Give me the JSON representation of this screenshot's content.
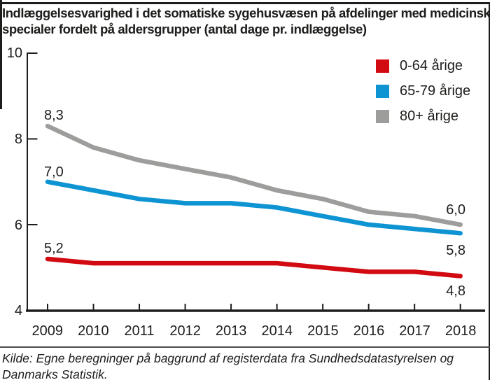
{
  "header": {
    "title_lines": [
      "Indlæggelsesvarighed i det somatiske sygehusvæsen på afdelinger med medicinske",
      "specialer fordelt på aldersgrupper (antal dage pr. indlæggelse)"
    ]
  },
  "chart_data": {
    "type": "line",
    "title": "Indlæggelsesvarighed i det somatiske sygehusvæsen på afdelinger med medicinske specialer fordelt på aldersgrupper (antal dage pr. indlæggelse)",
    "x": [
      "2009",
      "2010",
      "2011",
      "2012",
      "2013",
      "2014",
      "2015",
      "2016",
      "2017",
      "2018"
    ],
    "ylim": [
      4,
      10
    ],
    "yticks": [
      "10",
      "8",
      "6",
      "4"
    ],
    "grid": false,
    "legend_position": "top-right",
    "axis_color": "#1d1d1b",
    "series": [
      {
        "name": "0-64 årige",
        "color": "#d20a11",
        "values": [
          5.2,
          5.1,
          5.1,
          5.1,
          5.1,
          5.1,
          5.0,
          4.9,
          4.9,
          4.8
        ],
        "first_label": "5,2",
        "last_label": "4,8"
      },
      {
        "name": "65-79 årige",
        "color": "#0e94d2",
        "values": [
          7.0,
          6.8,
          6.6,
          6.5,
          6.5,
          6.4,
          6.2,
          6.0,
          5.9,
          5.8
        ],
        "first_label": "7,0",
        "last_label": "5,8"
      },
      {
        "name": "80+ årige",
        "color": "#9d9d9c",
        "values": [
          8.3,
          7.8,
          7.5,
          7.3,
          7.1,
          6.8,
          6.6,
          6.3,
          6.2,
          6.0
        ],
        "first_label": "8,3",
        "last_label": "6,0"
      }
    ]
  },
  "source": {
    "lines": [
      "Kilde: Egne beregninger på baggrund af registerdata fra Sundhedsdatastyrelsen og",
      "Danmarks Statistik."
    ]
  }
}
